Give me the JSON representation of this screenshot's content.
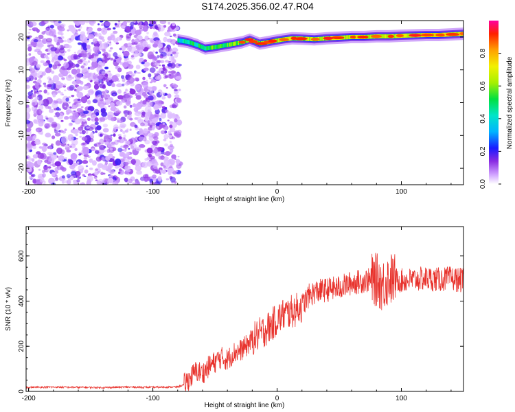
{
  "title": "S174.2025.356.02.47.R04",
  "chart_data": [
    {
      "type": "heatmap",
      "xlabel": "Height of straight line (km)",
      "ylabel": "Frequency (Hz)",
      "xlim": [
        -202,
        150
      ],
      "ylim": [
        -25,
        25
      ],
      "xticks": [
        "-200",
        "-100",
        "0",
        "100"
      ],
      "yticks": [
        "20",
        "10",
        "0",
        "-10",
        "-20"
      ],
      "noise_region_x": [
        -202,
        -78
      ],
      "band": {
        "x": [
          -80,
          -72,
          -64,
          -58,
          -52,
          -46,
          -40,
          -34,
          -28,
          -22,
          -18,
          -14,
          -8,
          -2,
          4,
          12,
          20,
          30,
          40,
          50,
          60,
          70,
          80,
          90,
          100,
          110,
          120,
          130,
          140,
          150
        ],
        "freq": [
          19,
          18.5,
          17.5,
          16.5,
          16.8,
          17.2,
          17.6,
          18.0,
          18.4,
          19.2,
          18.6,
          18.0,
          18.4,
          18.8,
          19.2,
          19.6,
          19.5,
          19.3,
          19.6,
          19.8,
          20.0,
          20.0,
          20.2,
          20.2,
          20.4,
          20.5,
          20.6,
          20.6,
          20.8,
          21.0
        ],
        "amp": [
          0.3,
          0.4,
          0.5,
          0.55,
          0.6,
          0.62,
          0.65,
          0.7,
          0.72,
          0.74,
          0.72,
          0.75,
          0.8,
          0.82,
          0.85,
          0.88,
          0.85,
          0.86,
          0.88,
          0.9,
          0.92,
          0.9,
          0.93,
          0.95,
          0.96,
          0.97,
          0.98,
          0.97,
          0.99,
          0.95
        ]
      },
      "colorbar": {
        "label": "Normalized spectral amplitude",
        "ticks": [
          "0.0",
          "0.2",
          "0.4",
          "0.6",
          "0.8"
        ],
        "range": [
          0,
          1
        ]
      }
    },
    {
      "type": "line",
      "xlabel": "Height of straight line (km)",
      "ylabel": "SNR (10 * v/v)",
      "xlim": [
        -202,
        150
      ],
      "ylim": [
        0,
        730
      ],
      "xticks": [
        "-200",
        "-100",
        "0",
        "100"
      ],
      "yticks": [
        "0",
        "200",
        "400",
        "600"
      ],
      "color": "#e8322c",
      "series": [
        {
          "name": "SNR",
          "x": [
            -202,
            -180,
            -160,
            -140,
            -120,
            -100,
            -90,
            -80,
            -75,
            -70,
            -65,
            -60,
            -55,
            -50,
            -45,
            -40,
            -35,
            -30,
            -25,
            -20,
            -15,
            -10,
            -5,
            0,
            5,
            10,
            15,
            20,
            25,
            30,
            40,
            50,
            60,
            70,
            80,
            85,
            90,
            100,
            110,
            120,
            130,
            140,
            150
          ],
          "y": [
            18,
            19,
            18,
            17,
            19,
            18,
            19,
            20,
            30,
            60,
            90,
            80,
            110,
            130,
            150,
            140,
            170,
            180,
            200,
            230,
            250,
            270,
            290,
            320,
            340,
            350,
            360,
            380,
            420,
            440,
            450,
            460,
            480,
            490,
            495,
            470,
            500,
            490,
            495,
            500,
            495,
            500,
            490
          ]
        }
      ]
    }
  ]
}
